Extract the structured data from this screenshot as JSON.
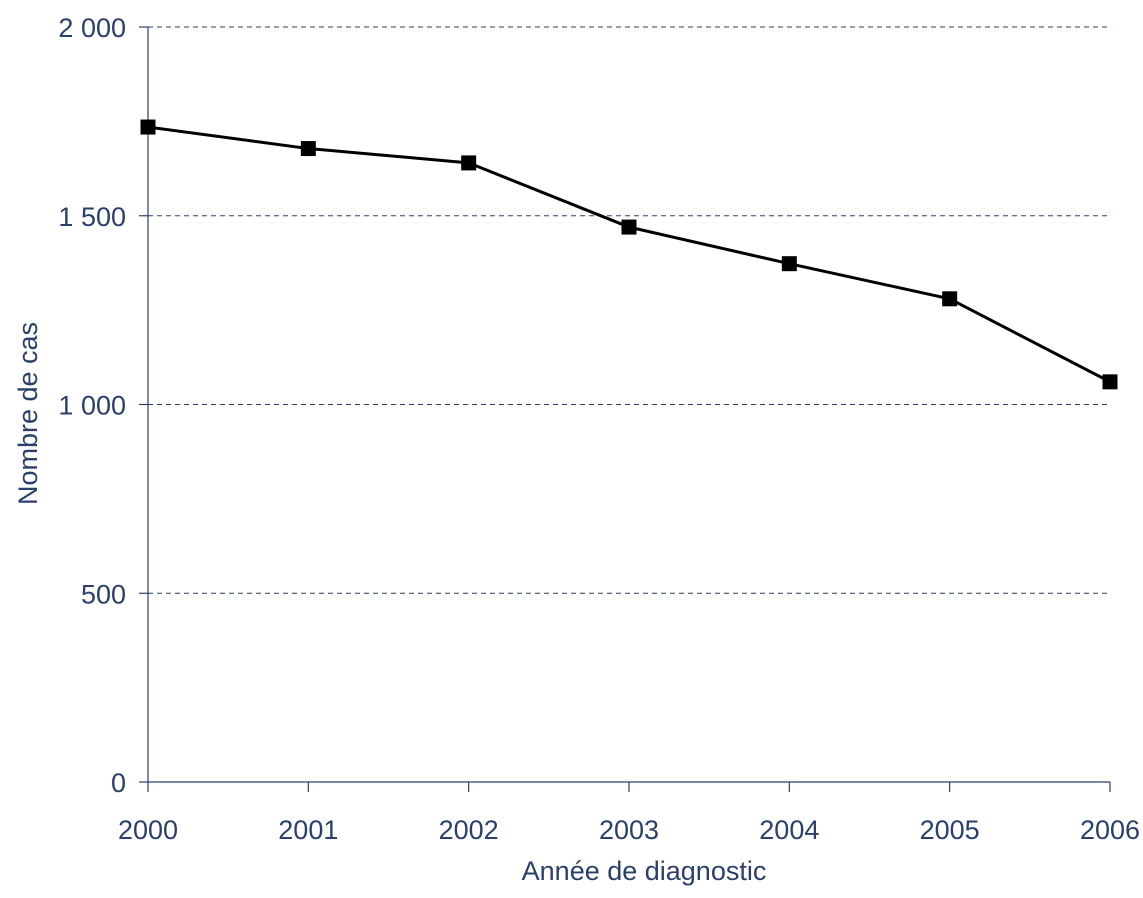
{
  "chart_data": {
    "type": "line",
    "title": "",
    "xlabel": "Année de diagnostic",
    "ylabel": "Nombre de cas",
    "categories": [
      "2000",
      "2001",
      "2002",
      "2003",
      "2004",
      "2005",
      "2006"
    ],
    "series": [
      {
        "values": [
          1735,
          1678,
          1640,
          1470,
          1373,
          1280,
          1060
        ]
      }
    ],
    "ylim": [
      0,
      2000
    ],
    "yticks": [
      0,
      500,
      1000,
      1500,
      2000
    ],
    "ytick_labels": [
      "0",
      "500",
      "1 000",
      "1 500",
      "2 000"
    ],
    "grid": {
      "y": true,
      "style": "dashed"
    },
    "marker": "square",
    "colors": {
      "axis": "#2b3f6b",
      "text": "#2b3f6b",
      "grid": "#2b3f6b",
      "line": "#000000"
    }
  }
}
